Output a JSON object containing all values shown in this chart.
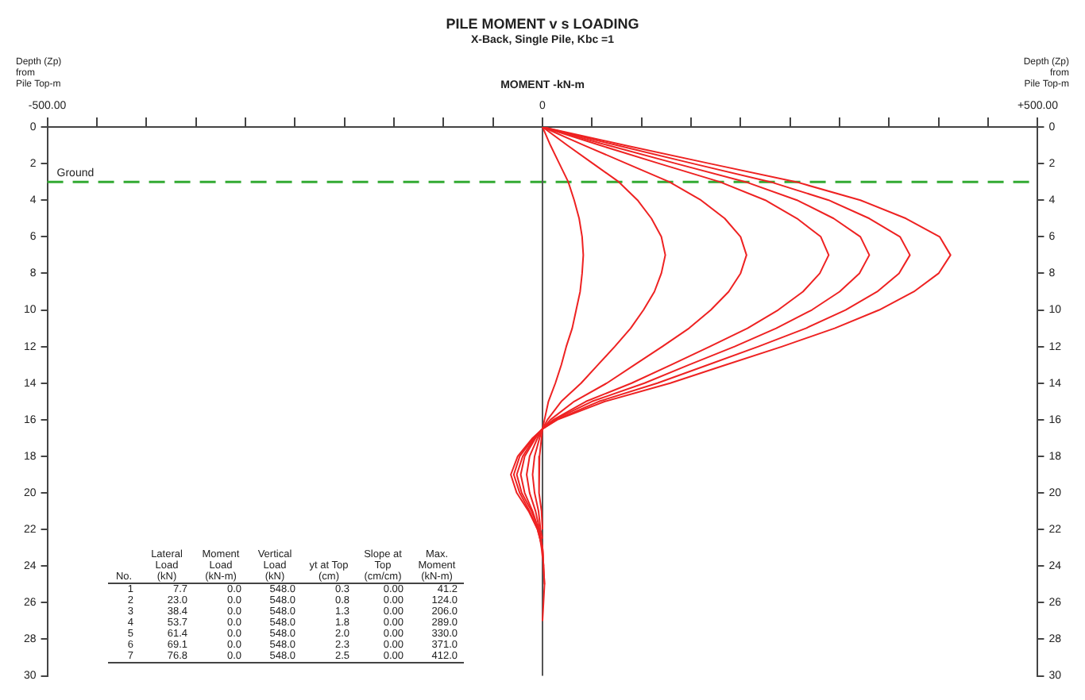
{
  "chart_data": {
    "type": "line",
    "title": "PILE MOMENT v s LOADING",
    "subtitle": "X-Back, Single Pile, Kbc =1",
    "xlabel": "MOMENT -kN-m",
    "ylabel": "Depth (Zp)\nfrom\nPile Top-m",
    "y2label": "Depth (Zp)\nfrom\nPile Top-m",
    "xlim": [
      -500,
      500
    ],
    "xticks": [
      {
        "value": -500,
        "label": "-500.00"
      },
      {
        "value": -450,
        "label": null
      },
      {
        "value": -400,
        "label": null
      },
      {
        "value": -350,
        "label": null
      },
      {
        "value": -300,
        "label": null
      },
      {
        "value": -250,
        "label": null
      },
      {
        "value": -200,
        "label": null
      },
      {
        "value": -150,
        "label": null
      },
      {
        "value": -100,
        "label": null
      },
      {
        "value": -50,
        "label": null
      },
      0,
      {
        "value": 50,
        "label": null
      },
      {
        "value": 100,
        "label": null
      },
      {
        "value": 150,
        "label": null
      },
      {
        "value": 200,
        "label": null
      },
      {
        "value": 250,
        "label": null
      },
      {
        "value": 300,
        "label": null
      },
      {
        "value": 350,
        "label": null
      },
      {
        "value": 400,
        "label": null
      },
      {
        "value": 450,
        "label": null
      },
      {
        "value": 500,
        "label": "+500.00"
      }
    ],
    "ylim": [
      30,
      0
    ],
    "yticks": [
      0,
      2,
      4,
      6,
      8,
      10,
      12,
      14,
      16,
      18,
      20,
      22,
      24,
      26,
      28,
      30
    ],
    "y2lim": [
      30,
      0
    ],
    "y2ticks": [
      0,
      2,
      4,
      6,
      8,
      10,
      12,
      14,
      16,
      18,
      20,
      22,
      24,
      26,
      28,
      30
    ],
    "grid": false,
    "legend": false,
    "ref_lines": [
      {
        "axis": "y",
        "value": 3,
        "label": "Ground",
        "color": "#33aa33",
        "line_style": "dashed"
      },
      {
        "axis": "x",
        "value": 0,
        "label": null,
        "color": "#555555",
        "line_style": "solid"
      }
    ],
    "series": [
      {
        "color": "#ee2222",
        "x": [
          0,
          8,
          17,
          26,
          32,
          37,
          40,
          41.2,
          40,
          38,
          34,
          30,
          24,
          19,
          13,
          6,
          2,
          0,
          -1,
          -3,
          -4,
          -3,
          -1,
          0
        ],
        "values": [
          0,
          1,
          2,
          3,
          4,
          5,
          6,
          7,
          8,
          9,
          10,
          11,
          12,
          13,
          14,
          15,
          16,
          16.5,
          17,
          18,
          19,
          20,
          21,
          22
        ]
      },
      {
        "color": "#ee2222",
        "x": [
          0,
          25,
          51,
          77,
          96,
          110,
          120,
          124,
          120,
          113,
          102,
          89,
          73,
          56,
          39,
          19,
          5,
          0,
          -3,
          -8,
          -10,
          -8,
          -4,
          -2,
          0
        ],
        "values": [
          0,
          1,
          2,
          3,
          4,
          5,
          6,
          7,
          8,
          9,
          10,
          11,
          12,
          13,
          14,
          15,
          16,
          16.5,
          17,
          18,
          19,
          20,
          21,
          22,
          22.5
        ]
      },
      {
        "color": "#ee2222",
        "x": [
          0,
          42,
          85,
          128,
          160,
          184,
          200,
          206,
          200,
          188,
          170,
          148,
          121,
          93,
          65,
          32,
          8,
          0,
          -5,
          -13,
          -16,
          -13,
          -7,
          -3,
          0
        ],
        "values": [
          0,
          1,
          2,
          3,
          4,
          5,
          6,
          7,
          8,
          9,
          10,
          11,
          12,
          13,
          14,
          15,
          16,
          16.5,
          17,
          18,
          19,
          20,
          21,
          22,
          23
        ]
      },
      {
        "color": "#ee2222",
        "x": [
          0,
          58,
          118,
          179,
          225,
          257,
          281,
          289,
          280,
          263,
          238,
          207,
          169,
          130,
          90,
          44,
          11,
          0,
          -7,
          -18,
          -22,
          -18,
          -10,
          -4,
          -1,
          0
        ],
        "values": [
          0,
          1,
          2,
          3,
          4,
          5,
          6,
          7,
          8,
          9,
          10,
          11,
          12,
          13,
          14,
          15,
          16,
          16.5,
          17,
          18,
          19,
          20,
          21,
          22,
          23,
          23.5
        ]
      },
      {
        "color": "#ee2222",
        "x": [
          0,
          66,
          135,
          205,
          257,
          294,
          321,
          330,
          320,
          300,
          272,
          236,
          194,
          148,
          103,
          50,
          12,
          0,
          -8,
          -20,
          -26,
          -21,
          -11,
          -4,
          0,
          1
        ],
        "values": [
          0,
          1,
          2,
          3,
          4,
          5,
          6,
          7,
          8,
          9,
          10,
          11,
          12,
          13,
          14,
          15,
          16,
          16.5,
          17,
          18,
          19,
          20,
          21,
          22,
          23,
          24
        ]
      },
      {
        "color": "#ee2222",
        "x": [
          0,
          75,
          152,
          230,
          289,
          330,
          361,
          371,
          360,
          338,
          306,
          266,
          218,
          167,
          116,
          57,
          14,
          0,
          -9,
          -23,
          -29,
          -23,
          -13,
          -5,
          0,
          2
        ],
        "values": [
          0,
          1,
          2,
          3,
          4,
          5,
          6,
          7,
          8,
          9,
          10,
          11,
          12,
          13,
          14,
          15,
          16,
          16.5,
          17,
          18,
          19,
          20,
          21,
          22,
          23,
          25
        ]
      },
      {
        "color": "#ee2222",
        "x": [
          0,
          83,
          169,
          256,
          321,
          367,
          401,
          412,
          400,
          375,
          340,
          295,
          242,
          185,
          129,
          63,
          15,
          0,
          -10,
          -25,
          -32,
          -26,
          -14,
          -5,
          0,
          2,
          0
        ],
        "values": [
          0,
          1,
          2,
          3,
          4,
          5,
          6,
          7,
          8,
          9,
          10,
          11,
          12,
          13,
          14,
          15,
          16,
          16.5,
          17,
          18,
          19,
          20,
          21,
          22,
          23,
          25,
          27
        ]
      }
    ],
    "annotations": [
      "No.\tLateral Load (kN)\tMoment Load (kN-m)\tVertical Load (kN)\tyt at Top (cm)\tSlope at Top (cm/cm)\tMax. Moment (kN-m)",
      "1\t7.7\t0.0\t548.0\t0.3\t0.00\t41.2",
      "2\t23.0\t0.0\t548.0\t0.8\t0.00\t124.0",
      "3\t38.4\t0.0\t548.0\t1.3\t0.00\t206.0",
      "4\t53.7\t0.0\t548.0\t1.8\t0.00\t289.0",
      "5\t61.4\t0.0\t548.0\t2.0\t0.00\t330.0",
      "6\t69.1\t0.0\t548.0\t2.3\t0.00\t371.0",
      "7\t76.8\t0.0\t548.0\t2.5\t0.00\t412.0"
    ]
  }
}
